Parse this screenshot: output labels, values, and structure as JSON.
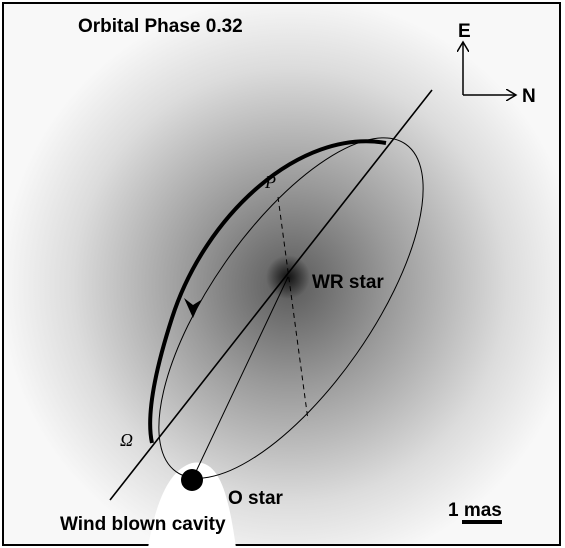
{
  "title": "Orbital Phase 0.32",
  "compass": {
    "east": "E",
    "north": "N"
  },
  "labels": {
    "periastron": "P",
    "wr_star": "WR star",
    "node": "Ω",
    "o_star": "O star",
    "cavity": "Wind blown cavity",
    "scale": "1 mas"
  }
}
